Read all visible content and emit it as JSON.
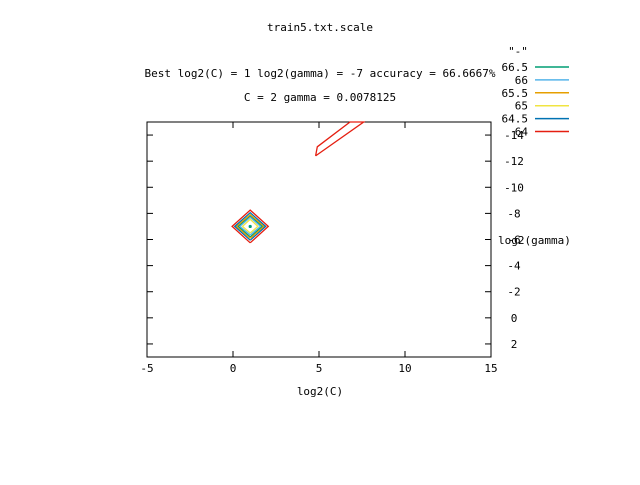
{
  "chart_data": {
    "type": "contour",
    "title": "train5.txt.scale",
    "subtitle_line1": "Best log2(C) = 1  log2(gamma) = -7  accuracy = 66.6667%",
    "subtitle_line2": "C = 2  gamma = 0.0078125",
    "xlabel": "log2(C)",
    "ylabel": "log2(gamma)",
    "xlim": [
      -5,
      15
    ],
    "ylim": [
      3,
      -15
    ],
    "y_reversed": true,
    "grid": false,
    "legend_placement": "top-right",
    "x_ticks": [
      -5,
      0,
      5,
      10,
      15
    ],
    "y_ticks": [
      2,
      0,
      -2,
      -4,
      -6,
      -8,
      -10,
      -12,
      -14
    ],
    "legend_title": "\"-\"",
    "series": [
      {
        "name": "66.5",
        "color": "#009e73",
        "paths": [
          [
            [
              1,
              -6.2
            ],
            [
              1.7,
              -7
            ],
            [
              1,
              -7.8
            ],
            [
              0.3,
              -7
            ],
            [
              1,
              -6.2
            ]
          ]
        ]
      },
      {
        "name": "66",
        "color": "#56b4e9",
        "paths": [
          [
            [
              1,
              -6.35
            ],
            [
              1.6,
              -7
            ],
            [
              1,
              -7.7
            ],
            [
              0.4,
              -7
            ],
            [
              1,
              -6.35
            ]
          ]
        ]
      },
      {
        "name": "65.5",
        "color": "#e69f00",
        "paths": [
          [
            [
              1,
              -6.1
            ],
            [
              1.8,
              -7
            ],
            [
              1,
              -7.9
            ],
            [
              0.2,
              -7
            ],
            [
              1,
              -6.1
            ]
          ]
        ]
      },
      {
        "name": "65",
        "color": "#f0e442",
        "paths": [
          [
            [
              1,
              -6.5
            ],
            [
              1.45,
              -7
            ],
            [
              1,
              -7.55
            ],
            [
              0.55,
              -7
            ],
            [
              1,
              -6.5
            ]
          ]
        ]
      },
      {
        "name": "64.5",
        "color": "#0072b2",
        "paths": [
          [
            [
              1,
              -5.95
            ],
            [
              1.9,
              -7
            ],
            [
              1,
              -8.05
            ],
            [
              0.1,
              -7
            ],
            [
              1,
              -5.95
            ]
          ]
        ]
      },
      {
        "name": "64",
        "color": "#e51e10",
        "paths": [
          [
            [
              1,
              -5.75
            ],
            [
              2.05,
              -7
            ],
            [
              1,
              -8.25
            ],
            [
              -0.05,
              -7
            ],
            [
              1,
              -5.75
            ]
          ],
          [
            [
              4.8,
              -12.4
            ],
            [
              4.9,
              -13.1
            ],
            [
              6.8,
              -15
            ],
            [
              7.6,
              -15
            ],
            [
              4.8,
              -12.4
            ]
          ]
        ]
      }
    ],
    "center_marker": {
      "x": 1,
      "y": -7
    }
  }
}
